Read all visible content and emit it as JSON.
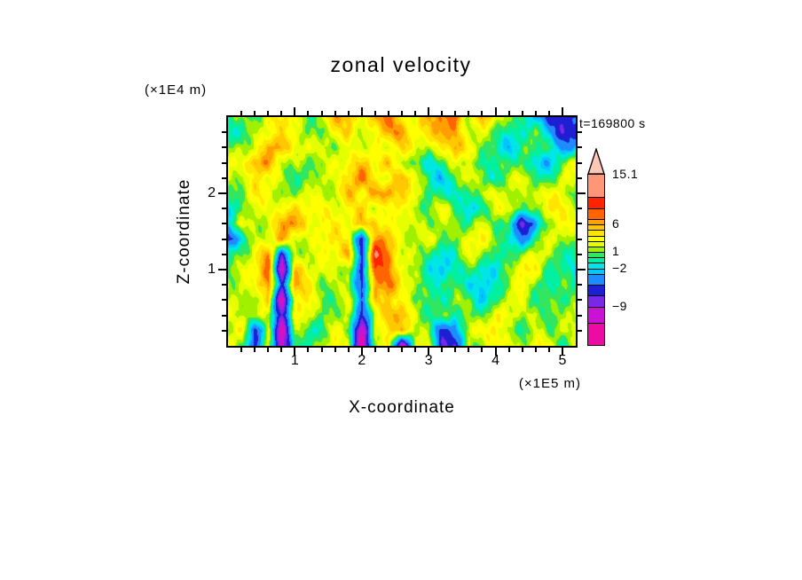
{
  "title": "zonal velocity",
  "time_label": "t=169800 s",
  "x_axis": {
    "label": "X-coordinate",
    "unit": "(×1E5 m)",
    "range": [
      0,
      5.2
    ],
    "ticks": [
      1,
      2,
      3,
      4,
      5
    ],
    "minor_step": 0.2
  },
  "z_axis": {
    "label": "Z-coordinate",
    "unit": "(×1E4 m)",
    "range": [
      0,
      3
    ],
    "ticks": [
      1,
      2
    ],
    "minor_step": 0.2
  },
  "colorbar": {
    "levels": [
      -16,
      -12,
      -9,
      -7,
      -5,
      -3,
      -2,
      -1,
      0,
      1,
      2,
      3,
      4,
      5,
      6,
      7,
      9,
      11,
      15.1
    ],
    "colors": [
      "#EC0CA4",
      "#C814D2",
      "#7828E6",
      "#1E1ED2",
      "#1E8CFF",
      "#00C8FF",
      "#00E6E6",
      "#00F0A0",
      "#32E65F",
      "#A0F000",
      "#E6FF00",
      "#FFFF00",
      "#FFE600",
      "#FFC800",
      "#FFA000",
      "#FF6400",
      "#FF2300",
      "#FF9678"
    ],
    "arrow_color": "#FFC8B4",
    "labels": [
      {
        "value": 15.1,
        "text": "15.1"
      },
      {
        "value": 6,
        "text": "6"
      },
      {
        "value": 1,
        "text": "1"
      },
      {
        "value": -2,
        "text": "−2"
      },
      {
        "value": -9,
        "text": "−9"
      }
    ]
  },
  "chart_data": {
    "type": "heatmap",
    "title": "zonal velocity",
    "xlabel": "X-coordinate (×1E5 m)",
    "ylabel": "Z-coordinate (×1E4 m)",
    "time_annotation": "t=169800 s",
    "x_range": [
      0,
      5.2
    ],
    "z_range": [
      0,
      3
    ],
    "x": [
      0,
      0.2,
      0.4,
      0.6,
      0.8,
      1,
      1.2,
      1.4,
      1.6,
      1.8,
      2,
      2.2,
      2.4,
      2.6,
      2.8,
      3,
      3.2,
      3.4,
      3.6,
      3.8,
      4,
      4.2,
      4.4,
      4.6,
      4.8,
      5,
      5.2
    ],
    "z": [
      3,
      2.8,
      2.6,
      2.4,
      2.2,
      2,
      1.8,
      1.6,
      1.4,
      1.2,
      1,
      0.8,
      0.6,
      0.4,
      0.2,
      0
    ],
    "grid_order": "rows from z=3 (top) to z=0 (bottom), estimated velocity values",
    "grid": [
      [
        0.5,
        0.5,
        0.5,
        3,
        3,
        3,
        0.5,
        3,
        6.5,
        6.5,
        3,
        6.5,
        6.5,
        3,
        3,
        6.5,
        6.5,
        8.5,
        3,
        6.5,
        3,
        0.5,
        0.5,
        -4,
        -6.5,
        -6.5,
        -4
      ],
      [
        -1.5,
        0.5,
        3,
        3,
        3,
        3,
        0.5,
        0.5,
        3,
        6.5,
        3,
        3,
        6.5,
        6.5,
        3,
        3,
        6.5,
        6.5,
        3,
        3,
        0.5,
        0.5,
        -1.5,
        0.5,
        -4,
        -6.5,
        -6.5
      ],
      [
        0.5,
        3,
        3,
        6.5,
        6.5,
        3,
        3,
        0.5,
        0.5,
        3,
        3,
        3,
        3,
        6.5,
        3,
        0.5,
        3,
        6.5,
        3,
        0.5,
        0.5,
        -1.5,
        0.5,
        0.5,
        0.5,
        -4,
        -4
      ],
      [
        3,
        3,
        6.5,
        6.5,
        3,
        3,
        0.5,
        0.5,
        3,
        3,
        4.5,
        3,
        6.5,
        3,
        0.5,
        -1.5,
        0.5,
        3,
        0.5,
        -1.5,
        0.5,
        0.5,
        0.5,
        -1.5,
        -1.5,
        0.5,
        3
      ],
      [
        3,
        0.5,
        3,
        3,
        3,
        0.5,
        0.5,
        3,
        3,
        4.5,
        6.5,
        3,
        3,
        6.5,
        3,
        0.5,
        -1.5,
        0.5,
        3,
        0.5,
        -1.5,
        0.5,
        3,
        0.5,
        0.5,
        3,
        3
      ],
      [
        0.5,
        0.5,
        3,
        3,
        0.5,
        0.5,
        3,
        3,
        3,
        6.5,
        3,
        6.5,
        6.5,
        3,
        3,
        0.5,
        0.5,
        -1.5,
        0.5,
        3,
        3,
        0.5,
        0.5,
        3,
        3,
        3,
        0.5
      ],
      [
        -1.5,
        0.5,
        3,
        3,
        3,
        3,
        3,
        4.5,
        3,
        3,
        6.5,
        3,
        3,
        3,
        0.5,
        0.5,
        3,
        0.5,
        -1.5,
        0.5,
        3,
        3,
        0.5,
        0.5,
        3,
        3,
        3
      ],
      [
        -1.5,
        3,
        3,
        3,
        6.5,
        6.5,
        3,
        3,
        3,
        3,
        6.5,
        6.5,
        3,
        3,
        3,
        0.5,
        0.5,
        0.5,
        0.5,
        3,
        0.5,
        0.5,
        -6.5,
        -4,
        0.5,
        3,
        3
      ],
      [
        -8,
        -1.5,
        3,
        3,
        6.5,
        3,
        3,
        3,
        3,
        3,
        -6.5,
        6.5,
        6.5,
        3,
        3,
        3,
        0.5,
        0.5,
        3,
        3,
        0.5,
        0.5,
        -4,
        0.5,
        3,
        3,
        0.5
      ],
      [
        -1.5,
        0.5,
        3,
        6.5,
        -6.5,
        3,
        3,
        3,
        3,
        6.5,
        -6.5,
        10,
        6.5,
        3,
        3,
        0.5,
        -1.5,
        0.5,
        3,
        0.5,
        -1.5,
        0.5,
        0.5,
        3,
        3,
        0.5,
        0.5
      ],
      [
        0.5,
        3,
        3,
        6.5,
        -13,
        6.5,
        3,
        3,
        3,
        3,
        -6.5,
        8.5,
        6.5,
        3,
        0.5,
        -1.5,
        -1.5,
        0.5,
        0.5,
        -1.5,
        -1.5,
        0.5,
        3,
        3,
        0.5,
        0.5,
        -1.5
      ],
      [
        3,
        3,
        3,
        6.5,
        -6.5,
        6.5,
        3,
        0.5,
        3,
        3,
        -6.5,
        6.5,
        8.5,
        3,
        0.5,
        -1.5,
        0.5,
        0.5,
        -1.5,
        -1.5,
        0.5,
        0.5,
        3,
        0.5,
        -1.5,
        0.5,
        -1.5
      ],
      [
        3,
        3,
        0.5,
        6.5,
        -13,
        3,
        3,
        0.5,
        0.5,
        3,
        -4,
        6.5,
        6.5,
        3,
        0.5,
        0.5,
        -1.5,
        0.5,
        0.5,
        -1.5,
        0.5,
        3,
        3,
        0.5,
        0.5,
        -1.5,
        0.5
      ],
      [
        3,
        0.5,
        3,
        3,
        -6.5,
        3,
        3,
        0.5,
        0.5,
        0.5,
        -6.5,
        3,
        6.5,
        6.5,
        3,
        0.5,
        0.5,
        -1.5,
        0.5,
        0.5,
        3,
        3,
        3,
        3,
        0.5,
        0.5,
        3
      ],
      [
        0.5,
        3,
        -6.5,
        3,
        -13,
        3,
        0.5,
        0.5,
        3,
        0.5,
        -13,
        3,
        3,
        6.5,
        3,
        3,
        -6.5,
        -4,
        3,
        3,
        3,
        0.5,
        0.5,
        3,
        0.5,
        3,
        3
      ],
      [
        3,
        0.5,
        -6.5,
        3,
        -13,
        0.5,
        0.5,
        3,
        3,
        3,
        -13,
        0.5,
        3,
        -13,
        3,
        3,
        -6.5,
        -6.5,
        3,
        0.5,
        3,
        3,
        0.5,
        3,
        3,
        0.5,
        3
      ]
    ]
  }
}
